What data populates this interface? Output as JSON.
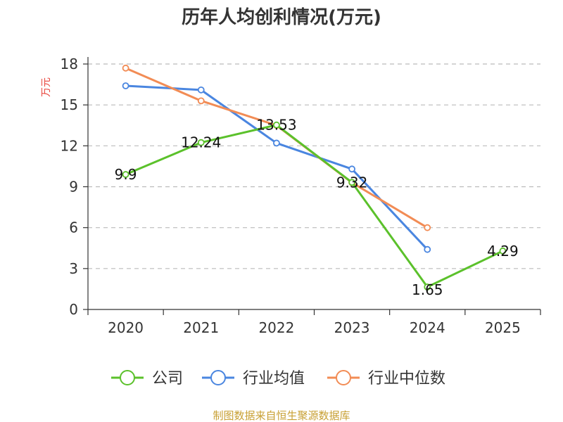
{
  "chart_data": {
    "type": "line",
    "title": "历年人均创利情况(万元)",
    "ylabel": "万元",
    "xlabel": "",
    "categories": [
      "2020",
      "2021",
      "2022",
      "2023",
      "2024",
      "2025"
    ],
    "ylim": [
      0,
      18
    ],
    "yticks": [
      "0",
      "3",
      "6",
      "9",
      "12",
      "15",
      "18"
    ],
    "grid": true,
    "legend_position": "bottom",
    "series": [
      {
        "name": "公司",
        "color": "#5bc12b",
        "values": [
          9.9,
          12.24,
          13.53,
          9.32,
          1.65,
          4.29
        ],
        "labels": [
          "9.9",
          "12.24",
          "13.53",
          "9.32",
          "1.65",
          "4.29"
        ]
      },
      {
        "name": "行业均值",
        "color": "#4a86e0",
        "values": [
          16.4,
          16.1,
          12.2,
          10.3,
          4.4,
          null
        ]
      },
      {
        "name": "行业中位数",
        "color": "#f28c55",
        "values": [
          17.7,
          15.3,
          13.5,
          9.3,
          6.0,
          null
        ]
      }
    ],
    "source": "制图数据来自恒生聚源数据库"
  },
  "colors": {
    "title": "#333333",
    "ylabel": "#e8453c",
    "source": "#c8a034",
    "grid": "#bbbbbb"
  }
}
